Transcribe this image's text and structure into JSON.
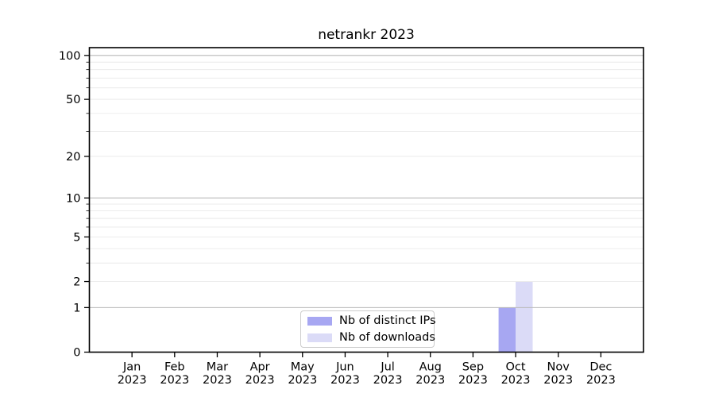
{
  "chart_data": {
    "type": "bar",
    "title": "netrankr 2023",
    "yscale": "log1p",
    "x_ticks": [
      {
        "line1": "Jan",
        "line2": "2023"
      },
      {
        "line1": "Feb",
        "line2": "2023"
      },
      {
        "line1": "Mar",
        "line2": "2023"
      },
      {
        "line1": "Apr",
        "line2": "2023"
      },
      {
        "line1": "May",
        "line2": "2023"
      },
      {
        "line1": "Jun",
        "line2": "2023"
      },
      {
        "line1": "Jul",
        "line2": "2023"
      },
      {
        "line1": "Aug",
        "line2": "2023"
      },
      {
        "line1": "Sep",
        "line2": "2023"
      },
      {
        "line1": "Oct",
        "line2": "2023"
      },
      {
        "line1": "Nov",
        "line2": "2023"
      },
      {
        "line1": "Dec",
        "line2": "2023"
      }
    ],
    "series": [
      {
        "id": "distinct-ips",
        "name": "Nb of distinct IPs",
        "color": "#a7a7f2",
        "values": [
          0,
          0,
          0,
          0,
          0,
          0,
          0,
          0,
          0,
          1,
          0,
          0
        ]
      },
      {
        "id": "downloads",
        "name": "Nb of downloads",
        "color": "#dbdbf7",
        "values": [
          0,
          0,
          0,
          0,
          0,
          0,
          0,
          0,
          0,
          2,
          0,
          0
        ]
      }
    ],
    "y_axis": {
      "top": 113,
      "ticks": [
        {
          "v": 0,
          "label": "0"
        },
        {
          "v": 1,
          "label": "1"
        },
        {
          "v": 2,
          "label": "2"
        },
        {
          "v": 5,
          "label": "5"
        },
        {
          "v": 10,
          "label": "10"
        },
        {
          "v": 20,
          "label": "20"
        },
        {
          "v": 50,
          "label": "50"
        },
        {
          "v": 100,
          "label": "100"
        }
      ],
      "ticks_minor": [
        3,
        4,
        6,
        7,
        8,
        9,
        30,
        40,
        60,
        70,
        80,
        90
      ],
      "grid_major": [
        1,
        10,
        100
      ],
      "grid_minor": [
        2,
        3,
        4,
        5,
        6,
        7,
        8,
        9,
        20,
        30,
        40,
        50,
        60,
        70,
        80,
        90
      ]
    },
    "colors": {
      "grid_major": "#b9b9b9",
      "grid_minor": "#e9e9e9",
      "axis": "#000000",
      "text": "#000000",
      "background": "#ffffff",
      "legend_border": "#cccccc"
    },
    "legend_position": "lower center inside plot"
  }
}
